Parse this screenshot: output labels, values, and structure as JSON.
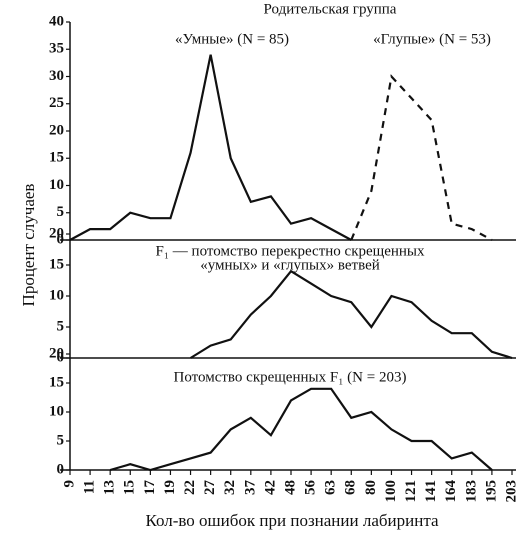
{
  "chart_data": {
    "type": "line",
    "ylabel": "Процент случаев",
    "xlabel": "Кол-во ошибок при познании лабиринта",
    "categories": [
      "9",
      "11",
      "13",
      "15",
      "17",
      "19",
      "22",
      "27",
      "32",
      "37",
      "42",
      "48",
      "56",
      "63",
      "68",
      "80",
      "100",
      "121",
      "141",
      "164",
      "183",
      "195",
      "203"
    ],
    "panels": [
      {
        "title": [
          "Родительская группа"
        ],
        "ylim": [
          0,
          40
        ],
        "yticks": [
          0,
          5,
          10,
          15,
          20,
          25,
          30,
          35,
          40
        ],
        "series": [
          {
            "name": "«Умные» (N = 85)",
            "color": "#111111",
            "dash": false,
            "values": [
              0,
              2,
              2,
              5,
              4,
              4,
              16,
              34,
              15,
              7,
              8,
              3,
              4,
              2,
              0,
              null,
              null,
              null,
              null,
              null,
              null,
              null,
              null
            ]
          },
          {
            "name": "«Глупые» (N = 53)",
            "color": "#111111",
            "dash": true,
            "values": [
              null,
              null,
              null,
              null,
              null,
              null,
              null,
              null,
              null,
              null,
              null,
              null,
              null,
              null,
              0,
              9,
              30,
              26,
              22,
              3,
              2,
              0,
              null
            ]
          }
        ]
      },
      {
        "title": [
          "F₁ — потомство перекрестно скрещенных",
          "«умных» и «глупых» ветвей"
        ],
        "ylim": [
          0,
          20
        ],
        "yticks": [
          0,
          5,
          10,
          15,
          20
        ],
        "series": [
          {
            "color": "#111111",
            "dash": false,
            "values": [
              null,
              null,
              null,
              null,
              null,
              null,
              0,
              2,
              3,
              7,
              10,
              14,
              12,
              10,
              9,
              5,
              10,
              9,
              6,
              4,
              4,
              1,
              0
            ]
          }
        ]
      },
      {
        "title": [
          "Потомство скрещенных F₁ (N = 203)"
        ],
        "ylim": [
          0,
          20
        ],
        "yticks": [
          0,
          5,
          10,
          15,
          20
        ],
        "series": [
          {
            "color": "#111111",
            "dash": false,
            "values": [
              null,
              null,
              0,
              1,
              0,
              1,
              2,
              3,
              7,
              9,
              6,
              12,
              14,
              14,
              9,
              10,
              7,
              5,
              5,
              2,
              3,
              0,
              null
            ]
          }
        ]
      }
    ]
  }
}
